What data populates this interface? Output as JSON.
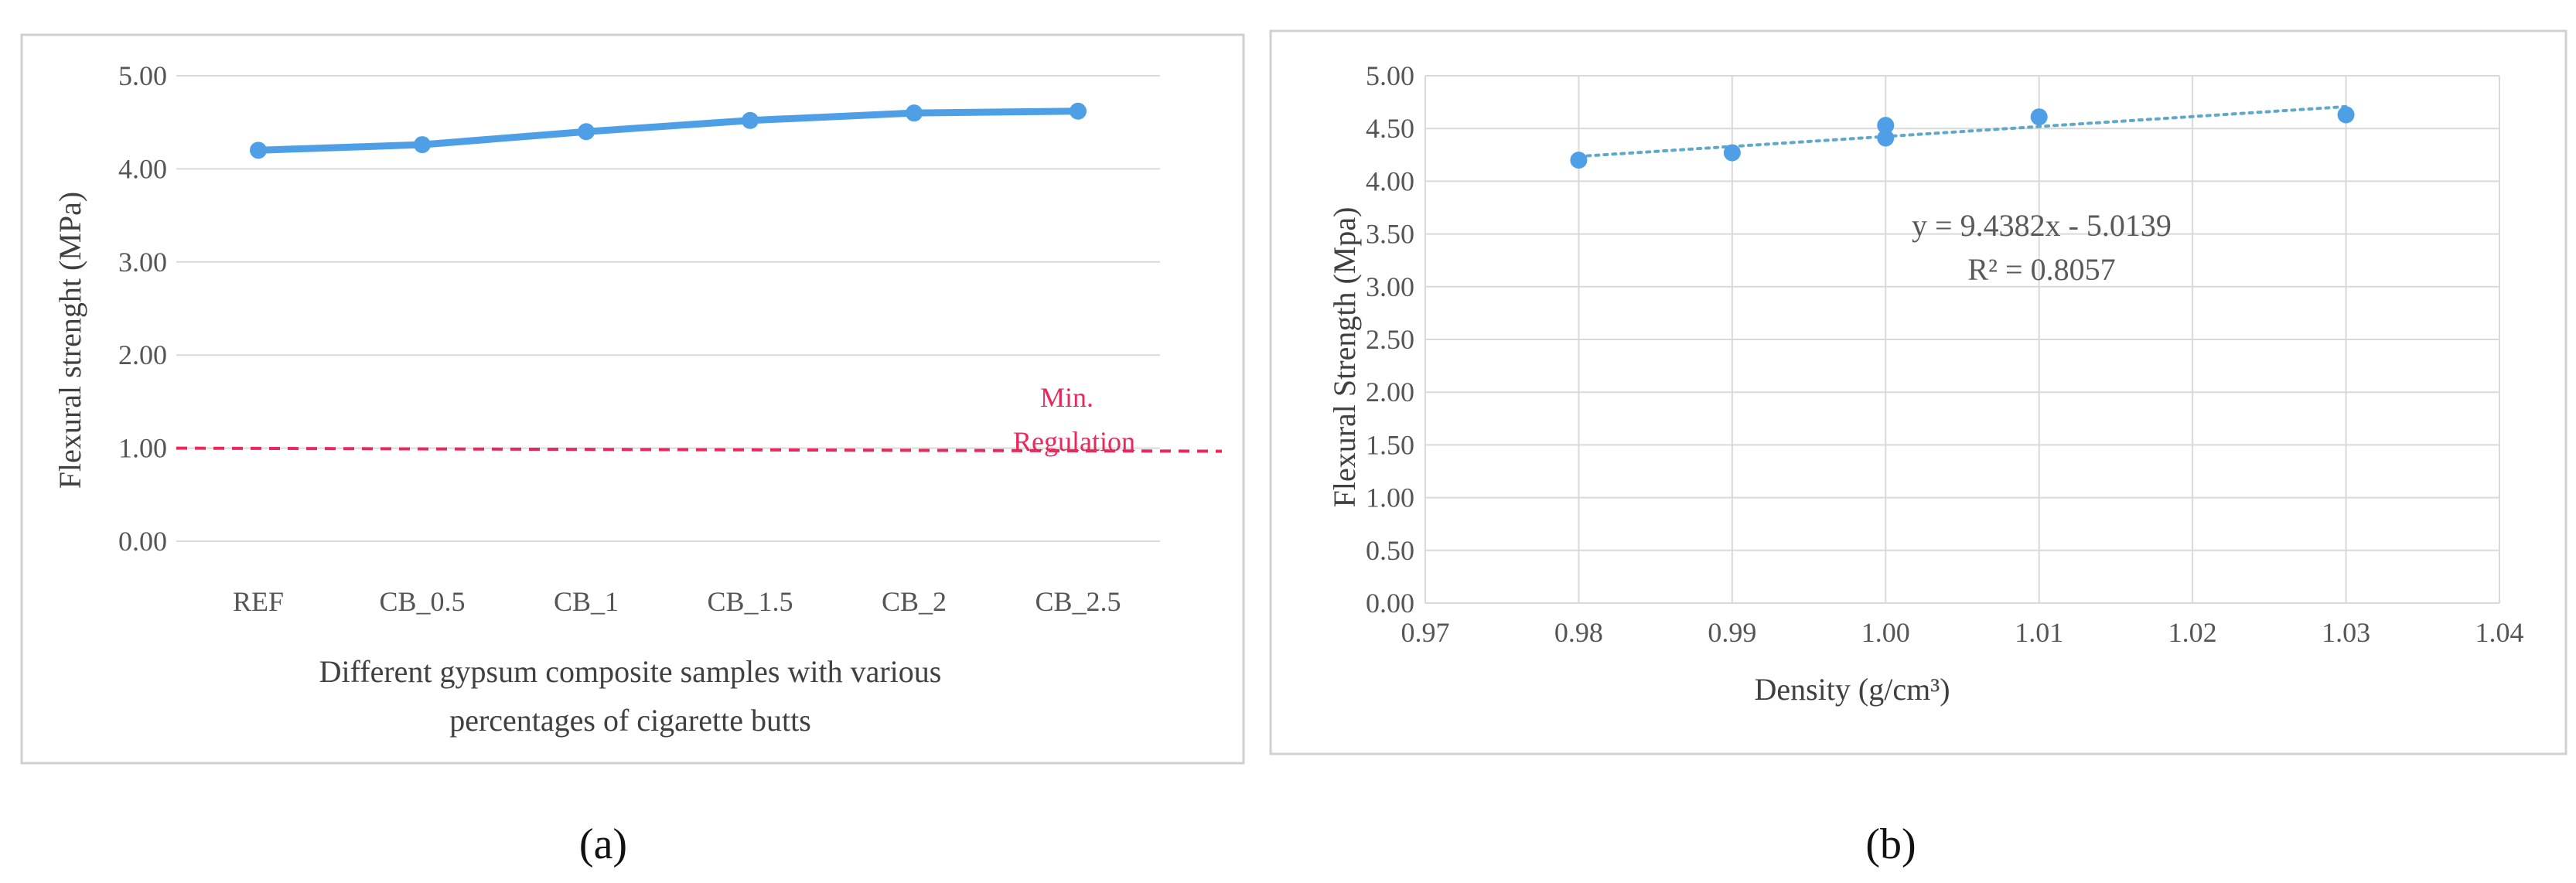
{
  "colors": {
    "series": "#4f9fe6",
    "regulation": "#e8295a",
    "trend": "#5ea8c9",
    "grid": "#d9d9d9",
    "frame": "#d0d0d0"
  },
  "chart_data": [
    {
      "type": "line",
      "panel": "(a)",
      "title": "",
      "xlabel": "Different gypsum composite samples with various percentages of cigarette butts",
      "xlabel_lines": [
        "Different gypsum composite samples with various",
        "percentages of cigarette butts"
      ],
      "ylabel": "Flexural strenght (MPa)",
      "ylim": [
        0,
        5
      ],
      "yticks": [
        "0.00",
        "1.00",
        "2.00",
        "3.00",
        "4.00",
        "5.00"
      ],
      "categories": [
        "REF",
        "CB_0.5",
        "CB_1",
        "CB_1.5",
        "CB_2",
        "CB_2.5"
      ],
      "values": [
        4.2,
        4.26,
        4.4,
        4.52,
        4.6,
        4.62
      ],
      "reference_line": {
        "value": 1.0,
        "label_lines": [
          "Min.",
          "Regulation"
        ]
      },
      "grid": true
    },
    {
      "type": "scatter",
      "panel": "(b)",
      "title": "",
      "xlabel": "Density (g/cm³)",
      "ylabel": "Flexural Strength (Mpa)",
      "xlim": [
        0.97,
        1.04
      ],
      "ylim": [
        0,
        5
      ],
      "xticks": [
        "0.97",
        "0.98",
        "0.99",
        "1.00",
        "1.01",
        "1.02",
        "1.03",
        "1.04"
      ],
      "yticks": [
        "0.00",
        "0.50",
        "1.00",
        "1.50",
        "2.00",
        "2.50",
        "3.00",
        "3.50",
        "4.00",
        "4.50",
        "5.00"
      ],
      "points": [
        {
          "x": 0.98,
          "y": 4.2
        },
        {
          "x": 0.99,
          "y": 4.27
        },
        {
          "x": 1.0,
          "y": 4.41
        },
        {
          "x": 1.0,
          "y": 4.53
        },
        {
          "x": 1.01,
          "y": 4.61
        },
        {
          "x": 1.03,
          "y": 4.63
        }
      ],
      "trendline": {
        "slope": 9.4382,
        "intercept": -5.0139,
        "x_range": [
          0.98,
          1.03
        ]
      },
      "equation": "y = 9.4382x - 5.0139",
      "r_squared": "R² = 0.8057",
      "grid": true
    }
  ]
}
